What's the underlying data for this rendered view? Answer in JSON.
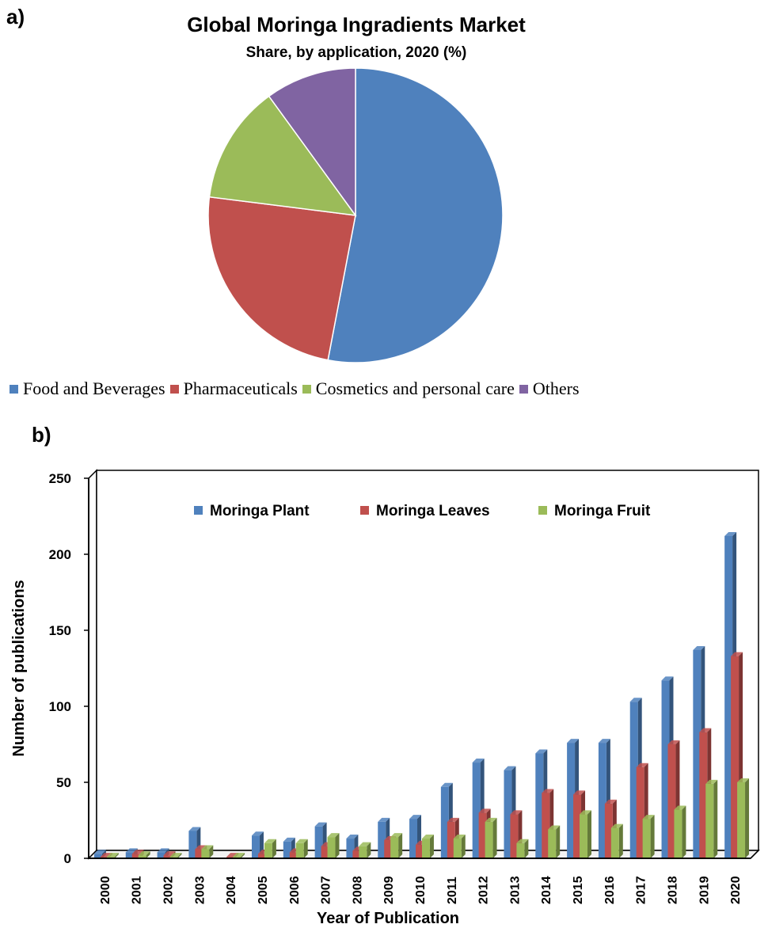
{
  "panel_a_label": "a)",
  "panel_b_label": "b)",
  "chart_data": [
    {
      "type": "pie",
      "title": "Global Moringa Ingradients Market",
      "subtitle": "Share, by application, 2020  (%)",
      "categories": [
        "Food and Beverages",
        "Pharmaceuticals",
        "Cosmetics and personal care",
        "Others"
      ],
      "values": [
        53,
        24,
        13,
        10
      ],
      "colors": [
        "#4f81bd",
        "#c0504d",
        "#9bbb59",
        "#8064a2"
      ],
      "legend_position": "bottom"
    },
    {
      "type": "bar",
      "title": "",
      "xlabel": "Year of Publication",
      "ylabel": "Number of publications",
      "ylim": [
        0,
        250
      ],
      "yticks": [
        0,
        50,
        100,
        150,
        200,
        250
      ],
      "grid": false,
      "legend_position": "top",
      "categories": [
        "2000",
        "2001",
        "2002",
        "2003",
        "2004",
        "2005",
        "2006",
        "2007",
        "2008",
        "2009",
        "2010",
        "2011",
        "2012",
        "2013",
        "2014",
        "2015",
        "2016",
        "2017",
        "2018",
        "2019",
        "2020"
      ],
      "series": [
        {
          "name": "Moringa Plant",
          "color": "#4f81bd",
          "values": [
            3,
            4,
            4,
            18,
            0,
            15,
            11,
            21,
            13,
            24,
            26,
            47,
            63,
            58,
            69,
            76,
            76,
            103,
            117,
            137,
            212
          ]
        },
        {
          "name": "Moringa Leaves",
          "color": "#c0504d",
          "values": [
            1,
            3,
            2,
            6,
            1,
            3,
            4,
            8,
            5,
            12,
            9,
            24,
            30,
            29,
            43,
            42,
            36,
            60,
            75,
            83,
            133
          ]
        },
        {
          "name": "Moringa Fruit",
          "color": "#9bbb59",
          "values": [
            1,
            2,
            1,
            6,
            1,
            10,
            10,
            14,
            8,
            14,
            13,
            13,
            24,
            10,
            19,
            29,
            20,
            26,
            32,
            49,
            50
          ]
        }
      ]
    }
  ]
}
